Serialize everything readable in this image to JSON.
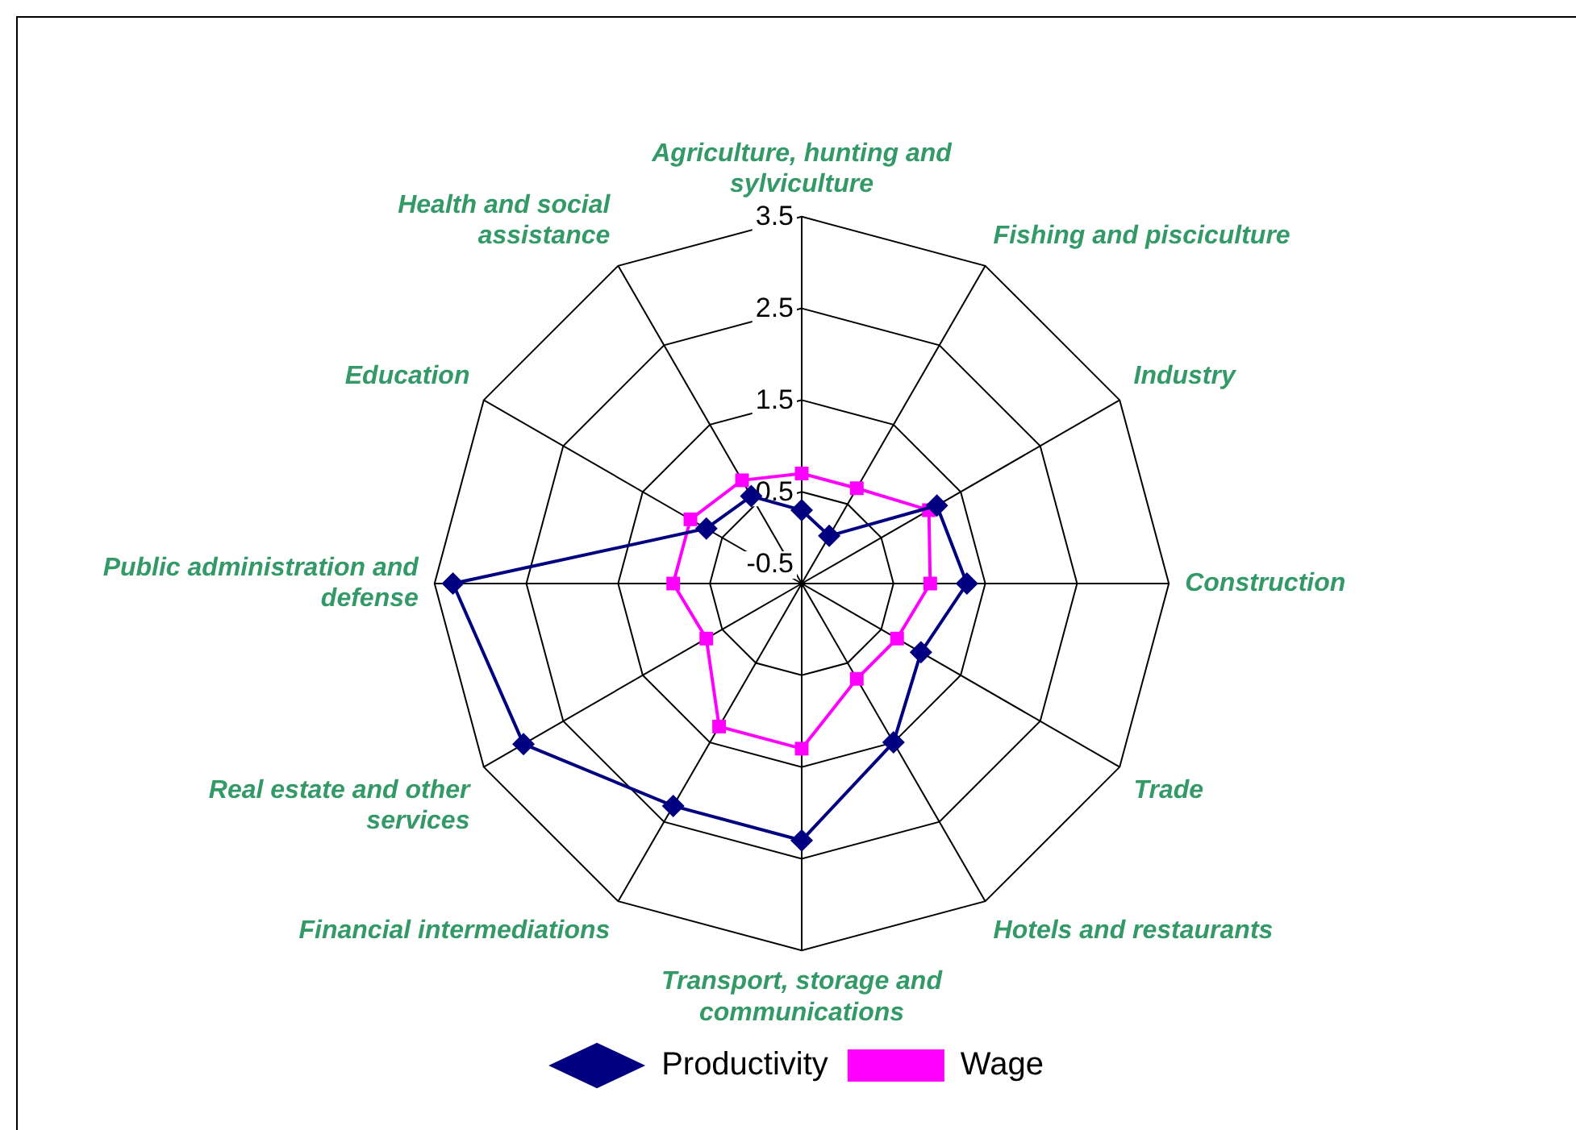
{
  "chart_data": {
    "type": "radar",
    "categories": [
      "Agriculture, hunting and sylviculture",
      "Fishing and pisciculture",
      "Industry",
      "Construction",
      "Trade",
      "Hotels and restaurants",
      "Transport, storage and communications",
      "Financial intermediations",
      "Real estate and other services",
      "Public administration and defense",
      "Education",
      "Health and social assistance"
    ],
    "series": [
      {
        "name": "Productivity",
        "color": "#000080",
        "values": [
          0.3,
          0.1,
          1.2,
          1.3,
          1.0,
          1.5,
          2.3,
          2.3,
          3.0,
          3.3,
          0.7,
          0.6
        ]
      },
      {
        "name": "Wage",
        "color": "#ff00ff",
        "values": [
          0.7,
          0.7,
          1.1,
          0.9,
          0.7,
          0.7,
          1.3,
          1.3,
          0.7,
          0.9,
          0.9,
          0.8
        ]
      }
    ],
    "ylim": [
      -0.5,
      3.5
    ],
    "yticks": [
      -0.5,
      0.5,
      1.5,
      2.5,
      3.5
    ],
    "grid": true,
    "legend": "bottom",
    "marker": "diamond",
    "line_style": "solid"
  }
}
